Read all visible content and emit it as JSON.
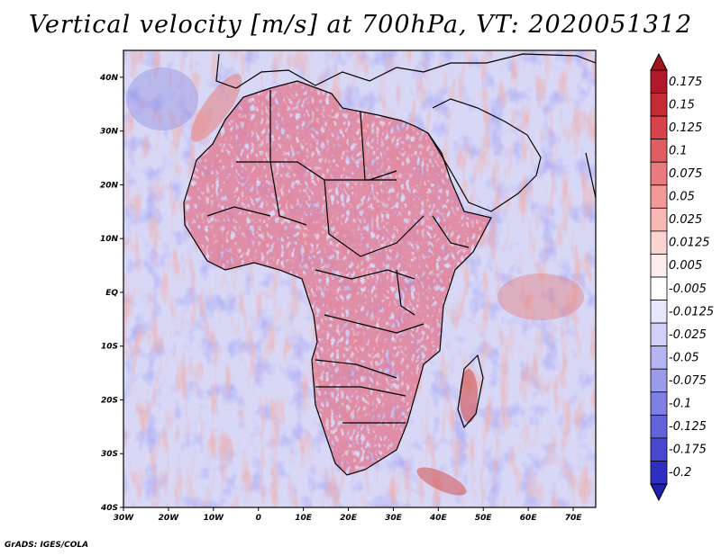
{
  "title": "Vertical velocity [m/s] at 700hPa, VT: 2020051312",
  "footer": "GrADS: IGES/COLA",
  "map": {
    "lon_range": [
      -30,
      75
    ],
    "lat_range": [
      -40,
      45
    ],
    "lon_ticks": [
      {
        "value": -30,
        "label": "30W"
      },
      {
        "value": -20,
        "label": "20W"
      },
      {
        "value": -10,
        "label": "10W"
      },
      {
        "value": 0,
        "label": "0"
      },
      {
        "value": 10,
        "label": "10E"
      },
      {
        "value": 20,
        "label": "20E"
      },
      {
        "value": 30,
        "label": "30E"
      },
      {
        "value": 40,
        "label": "40E"
      },
      {
        "value": 50,
        "label": "50E"
      },
      {
        "value": 60,
        "label": "60E"
      },
      {
        "value": 70,
        "label": "70E"
      }
    ],
    "lat_ticks": [
      {
        "value": 40,
        "label": "40N"
      },
      {
        "value": 30,
        "label": "30N"
      },
      {
        "value": 20,
        "label": "20N"
      },
      {
        "value": 10,
        "label": "10N"
      },
      {
        "value": 0,
        "label": "EQ"
      },
      {
        "value": -10,
        "label": "10S"
      },
      {
        "value": -20,
        "label": "20S"
      },
      {
        "value": -30,
        "label": "30S"
      },
      {
        "value": -40,
        "label": "40S"
      }
    ]
  },
  "colorbar": {
    "levels": [
      {
        "label": "0.175",
        "color": "#b2182b"
      },
      {
        "label": "0.15",
        "color": "#c62a35"
      },
      {
        "label": "0.125",
        "color": "#d6434b"
      },
      {
        "label": "0.1",
        "color": "#e05e62"
      },
      {
        "label": "0.075",
        "color": "#e97b7c"
      },
      {
        "label": "0.05",
        "color": "#f19a98"
      },
      {
        "label": "0.025",
        "color": "#f7b8b5"
      },
      {
        "label": "0.0125",
        "color": "#fbd4d2"
      },
      {
        "label": "0.005",
        "color": "#feecec"
      },
      {
        "label": "-0.005",
        "color": "#ffffff"
      },
      {
        "label": "-0.0125",
        "color": "#e7e7fc"
      },
      {
        "label": "-0.025",
        "color": "#cfcff8"
      },
      {
        "label": "-0.05",
        "color": "#b5b5f2"
      },
      {
        "label": "-0.075",
        "color": "#9b9bec"
      },
      {
        "label": "-0.1",
        "color": "#8080e4"
      },
      {
        "label": "-0.125",
        "color": "#6464da"
      },
      {
        "label": "-0.175",
        "color": "#4848cf"
      },
      {
        "label": "-0.2",
        "color": "#2e2ec0"
      }
    ],
    "top_color": "#a3141f",
    "bottom_color": "#2020b0"
  }
}
